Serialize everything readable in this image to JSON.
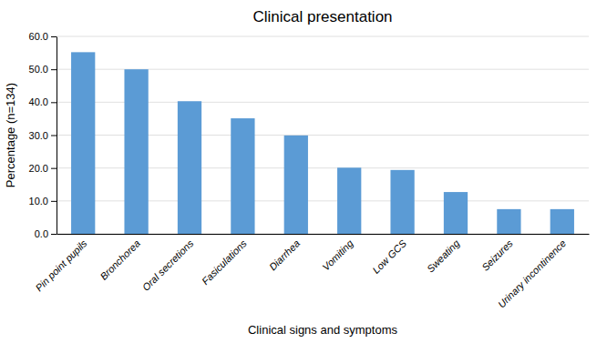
{
  "chart_data": {
    "type": "bar",
    "title": "Clinical presentation",
    "xlabel": "Clinical signs and symptoms",
    "ylabel": "Percentage (n=134)",
    "categories": [
      "Pin point pupils",
      "Bronchorea",
      "Oral secretions",
      "Fasiculations",
      "Diarrhea",
      "Vomiting",
      "Low GCS",
      "Sweating",
      "Seizures",
      "Urinary incontinence"
    ],
    "values": [
      55.2,
      50.0,
      40.3,
      35.1,
      29.9,
      20.1,
      19.4,
      12.7,
      7.5,
      7.5
    ],
    "color": "#5B9BD5",
    "ylim": [
      0,
      60
    ],
    "yticks": [
      {
        "value": 0,
        "label": "0.0"
      },
      {
        "value": 10,
        "label": "10.0"
      },
      {
        "value": 20,
        "label": "20.0"
      },
      {
        "value": 30,
        "label": "30.0"
      },
      {
        "value": 40,
        "label": "40.0"
      },
      {
        "value": 50,
        "label": "50.0"
      },
      {
        "value": 60,
        "label": "60.0"
      }
    ],
    "grid": true
  }
}
